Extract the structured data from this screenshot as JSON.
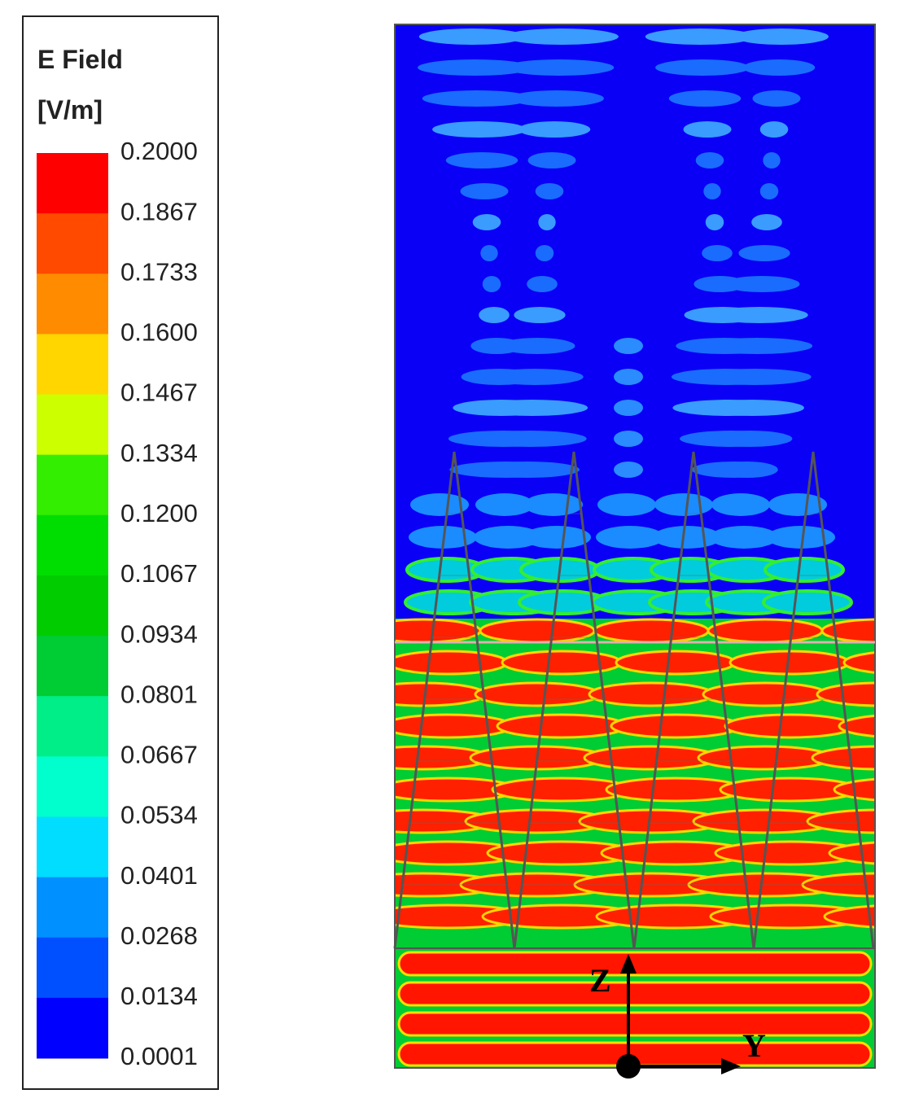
{
  "legend": {
    "title": "E Field",
    "unit": "[V/m]",
    "levels": [
      "0.2000",
      "0.1867",
      "0.1733",
      "0.1600",
      "0.1467",
      "0.1334",
      "0.1200",
      "0.1067",
      "0.0934",
      "0.0801",
      "0.0667",
      "0.0534",
      "0.0401",
      "0.0268",
      "0.0134",
      "0.0001"
    ],
    "colors": [
      "#ff0000",
      "#ff4a00",
      "#ff8c00",
      "#ffd600",
      "#ccff00",
      "#33ee00",
      "#00dd00",
      "#00cc00",
      "#00cc33",
      "#00ee88",
      "#00ffcc",
      "#00ddff",
      "#0090ff",
      "#0050ff",
      "#0000ff"
    ]
  },
  "plot": {
    "axis_z": "Z",
    "axis_y": "Y"
  }
}
